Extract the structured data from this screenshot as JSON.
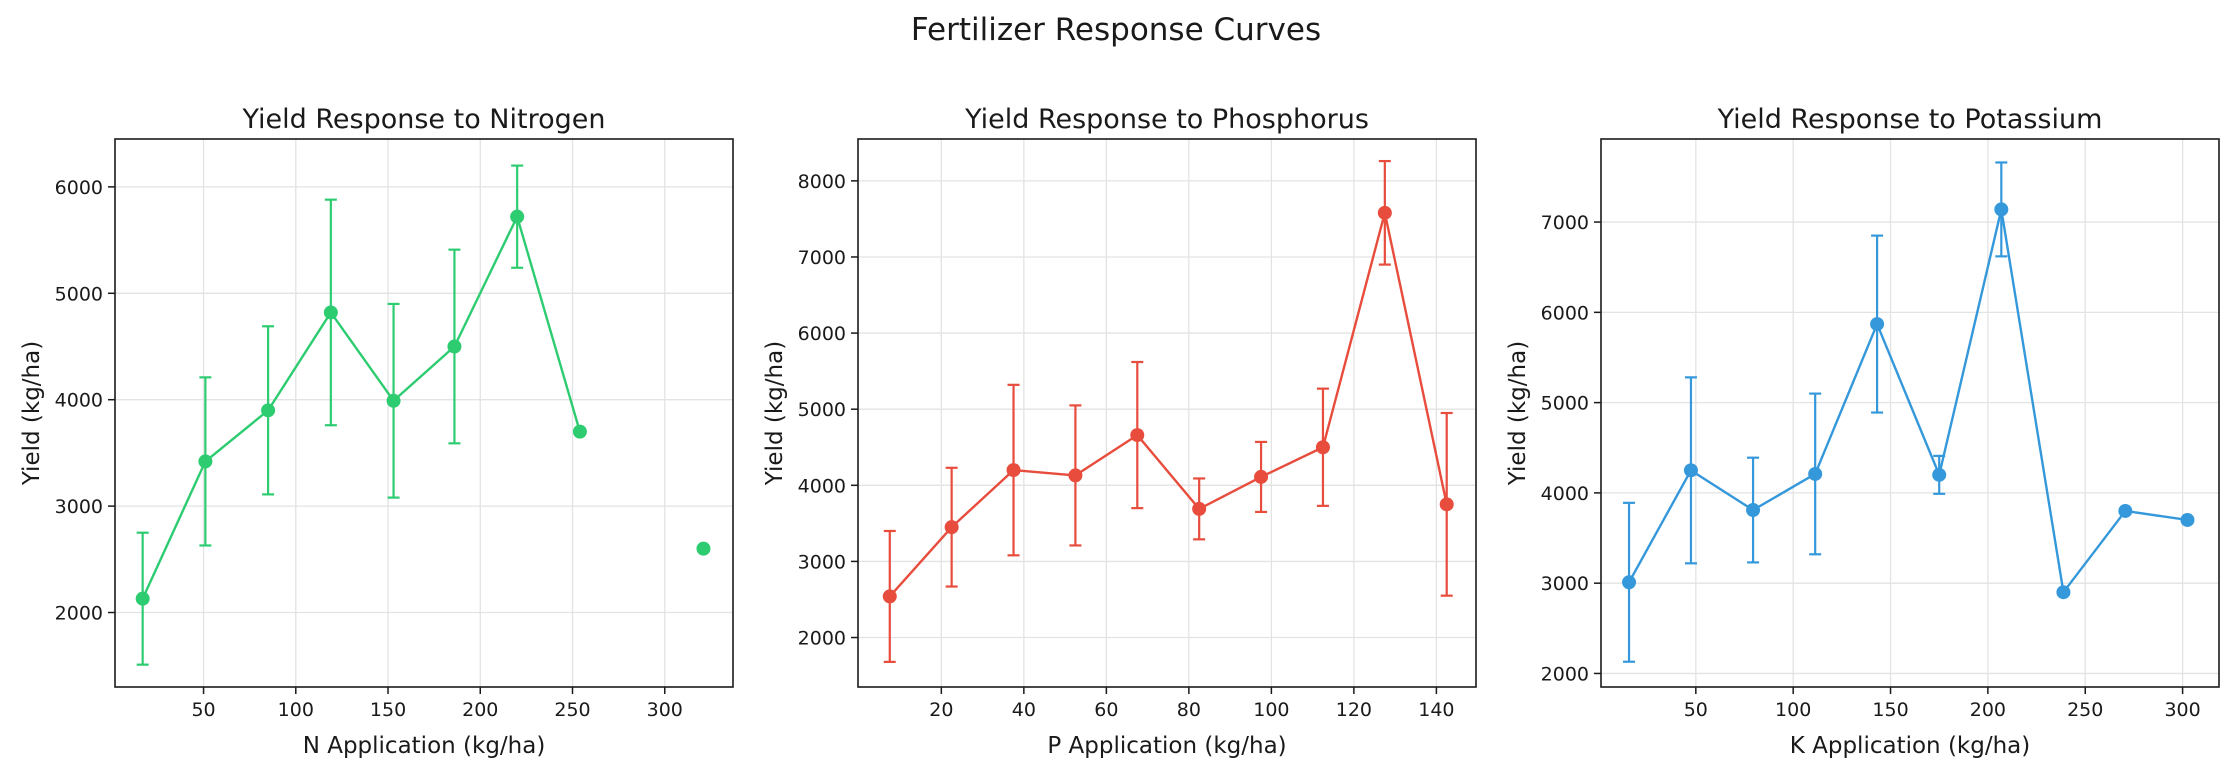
{
  "title": "Fertilizer Response Curves",
  "chart_data": [
    {
      "type": "line",
      "title": "Yield Response to Nitrogen",
      "xlabel": "N Application (kg/ha)",
      "ylabel": "Yield (kg/ha)",
      "color": "#2ecc71",
      "xlim": [
        2,
        337
      ],
      "ylim": [
        1300,
        6450
      ],
      "xticks": [
        50,
        100,
        150,
        200,
        250,
        300
      ],
      "yticks": [
        2000,
        3000,
        4000,
        5000,
        6000
      ],
      "grid": true,
      "series": [
        {
          "x": [
            17,
            51,
            85,
            119,
            153,
            186,
            220,
            254
          ],
          "y": [
            2130,
            3420,
            3900,
            4820,
            3990,
            4500,
            5720,
            3700
          ],
          "err": [
            620,
            790,
            790,
            1060,
            910,
            910,
            480,
            0
          ]
        }
      ],
      "unconnected_points": [
        {
          "x": 321,
          "y": 2600
        }
      ]
    },
    {
      "type": "line",
      "title": "Yield Response to Phosphorus",
      "xlabel": "P Application (kg/ha)",
      "ylabel": "Yield (kg/ha)",
      "color": "#e74c3c",
      "xlim": [
        -0.2,
        149.6
      ],
      "ylim": [
        1350,
        8550
      ],
      "xticks": [
        20,
        40,
        60,
        80,
        100,
        120,
        140
      ],
      "yticks": [
        2000,
        3000,
        4000,
        5000,
        6000,
        7000,
        8000
      ],
      "grid": true,
      "series": [
        {
          "x": [
            7.5,
            22.5,
            37.5,
            52.5,
            67.5,
            82.5,
            97.5,
            112.5,
            127.5,
            142.5
          ],
          "y": [
            2540,
            3450,
            4200,
            4130,
            4660,
            3690,
            4110,
            4500,
            7580,
            3750
          ],
          "err": [
            860,
            780,
            1120,
            920,
            960,
            400,
            460,
            770,
            680,
            1200
          ]
        }
      ]
    },
    {
      "type": "line",
      "title": "Yield Response to Potassium",
      "xlabel": "K Application (kg/ha)",
      "ylabel": "Yield (kg/ha)",
      "color": "#3498db",
      "xlim": [
        1.3,
        318.7
      ],
      "ylim": [
        1850,
        7920
      ],
      "xticks": [
        50,
        100,
        150,
        200,
        250,
        300
      ],
      "yticks": [
        2000,
        3000,
        4000,
        5000,
        6000,
        7000
      ],
      "grid": true,
      "series": [
        {
          "x": [
            15.7,
            47.5,
            79.4,
            111.3,
            143.1,
            175,
            206.9,
            238.8,
            270.6,
            302.5
          ],
          "y": [
            3010,
            4250,
            3810,
            4210,
            5870,
            4200,
            7140,
            2900,
            3800,
            3700
          ],
          "err": [
            880,
            1030,
            580,
            890,
            980,
            210,
            520,
            0,
            0,
            0
          ]
        }
      ]
    }
  ]
}
